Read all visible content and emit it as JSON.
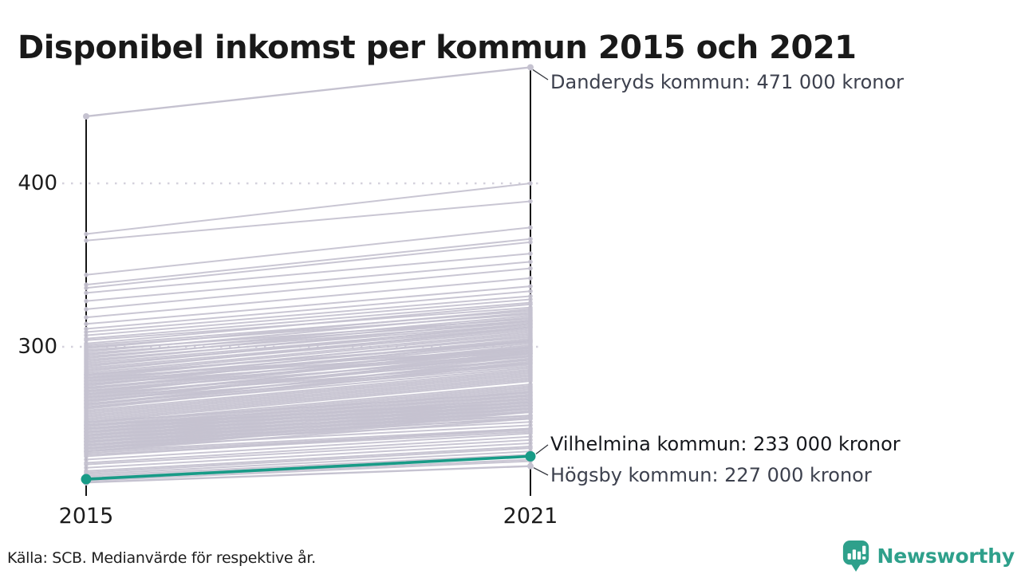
{
  "title": "Disponibel inkomst per kommun 2015 och 2021",
  "footer": {
    "source": "Källa: SCB. Medianvärde för respektive år."
  },
  "logo": {
    "text": "Newsworthy",
    "icon": "newsworthy-speech-bubble-bar-chart-icon"
  },
  "colors": {
    "background": "#ffffff",
    "line_gray": "#c5c2d0",
    "highlight_teal": "#189b87",
    "axis_black": "#141414",
    "grid_dot": "#cdcad7",
    "leader_dark": "#33363d",
    "logo_teal": "#2ea08b"
  },
  "chart_data": {
    "type": "line",
    "subtype": "slope-chart",
    "x_categories": [
      "2015",
      "2021"
    ],
    "y_ticks": [
      400,
      300
    ],
    "y_axis_implied_unit": "tusen kronor",
    "grid": "dotted-horizontal",
    "highlight": {
      "name": "Vilhelmina kommun",
      "label": "Vilhelmina kommun: 233 000 kronor",
      "values_2015_2021": [
        219,
        233
      ]
    },
    "labeled": [
      {
        "name": "Danderyds kommun",
        "label": "Danderyds kommun: 471 000 kronor",
        "values_2015_2021": [
          441,
          471
        ]
      },
      {
        "name": "Högsby kommun",
        "label": "Högsby kommun: 227 000 kronor",
        "values_2015_2021": [
          217,
          227
        ]
      }
    ],
    "background_pairs": [
      [
        369,
        400
      ],
      [
        365,
        389
      ],
      [
        344,
        373
      ],
      [
        338,
        366
      ],
      [
        336,
        364
      ],
      [
        333,
        357
      ],
      [
        328,
        352
      ],
      [
        323,
        348
      ],
      [
        318,
        342
      ],
      [
        314,
        337
      ],
      [
        311,
        334
      ],
      [
        309,
        331
      ],
      [
        307,
        329
      ],
      [
        305,
        327
      ],
      [
        304,
        324
      ],
      [
        302,
        326
      ],
      [
        301,
        322
      ],
      [
        300,
        320
      ],
      [
        299,
        323
      ],
      [
        298,
        317
      ],
      [
        297,
        321
      ],
      [
        296,
        316
      ],
      [
        295,
        319
      ],
      [
        294,
        315
      ],
      [
        293,
        318
      ],
      [
        292,
        314
      ],
      [
        291,
        316
      ],
      [
        290,
        313
      ],
      [
        289,
        312
      ],
      [
        288,
        314
      ],
      [
        287,
        311
      ],
      [
        286,
        310
      ],
      [
        285,
        312
      ],
      [
        284,
        309
      ],
      [
        283,
        308
      ],
      [
        282,
        306
      ],
      [
        281,
        307
      ],
      [
        280,
        304
      ],
      [
        279,
        305
      ],
      [
        278,
        303
      ],
      [
        277,
        302
      ],
      [
        276,
        304
      ],
      [
        275,
        300
      ],
      [
        274,
        301
      ],
      [
        273,
        299
      ],
      [
        272,
        298
      ],
      [
        271,
        300
      ],
      [
        270,
        296
      ],
      [
        269,
        297
      ],
      [
        268,
        295
      ],
      [
        267,
        294
      ],
      [
        266,
        296
      ],
      [
        265,
        292
      ],
      [
        264,
        293
      ],
      [
        263,
        291
      ],
      [
        262,
        290
      ],
      [
        283,
        303
      ],
      [
        281,
        299
      ],
      [
        279,
        298
      ],
      [
        277,
        297
      ],
      [
        275,
        296
      ],
      [
        273,
        294
      ],
      [
        271,
        292
      ],
      [
        269,
        290
      ],
      [
        267,
        289
      ],
      [
        265,
        288
      ],
      [
        263,
        287
      ],
      [
        261,
        286
      ],
      [
        260,
        285
      ],
      [
        259,
        284
      ],
      [
        258,
        283
      ],
      [
        257,
        282
      ],
      [
        256,
        281
      ],
      [
        255,
        280
      ],
      [
        254,
        279
      ],
      [
        253,
        277
      ],
      [
        252,
        276
      ],
      [
        251,
        275
      ],
      [
        250,
        274
      ],
      [
        249,
        273
      ],
      [
        248,
        272
      ],
      [
        247,
        271
      ],
      [
        246,
        270
      ],
      [
        245,
        269
      ],
      [
        244,
        268
      ],
      [
        243,
        267
      ],
      [
        242,
        266
      ],
      [
        241,
        265
      ],
      [
        240,
        264
      ],
      [
        239,
        263
      ],
      [
        238,
        262
      ],
      [
        237,
        261
      ],
      [
        236,
        260
      ],
      [
        254,
        272
      ],
      [
        252,
        270
      ],
      [
        250,
        268
      ],
      [
        248,
        266
      ],
      [
        246,
        264
      ],
      [
        244,
        262
      ],
      [
        242,
        260
      ],
      [
        240,
        258
      ],
      [
        238,
        257
      ],
      [
        236,
        256
      ],
      [
        252,
        266
      ],
      [
        250,
        264
      ],
      [
        248,
        262
      ],
      [
        246,
        260
      ],
      [
        244,
        258
      ],
      [
        242,
        256
      ],
      [
        240,
        254
      ],
      [
        238,
        252
      ],
      [
        236,
        250
      ],
      [
        235,
        249
      ],
      [
        234,
        248
      ],
      [
        233,
        250
      ],
      [
        231,
        247
      ],
      [
        229,
        245
      ],
      [
        228,
        243
      ],
      [
        226,
        241
      ],
      [
        224,
        239
      ],
      [
        223,
        238
      ],
      [
        222,
        236
      ],
      [
        221,
        234
      ],
      [
        220,
        233
      ],
      [
        219,
        231
      ],
      [
        218,
        230
      ]
    ]
  }
}
